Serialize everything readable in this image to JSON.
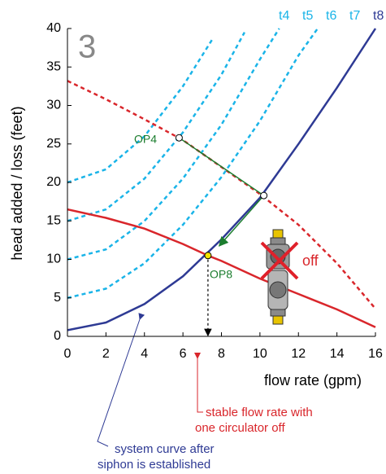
{
  "chart_data": {
    "type": "line",
    "xlabel": "flow rate (gpm)",
    "ylabel": "head added / loss (feet)",
    "xlim": [
      0,
      16
    ],
    "ylim": [
      0,
      40
    ],
    "xticks": [
      0,
      2,
      4,
      6,
      8,
      10,
      12,
      14,
      16
    ],
    "yticks": [
      0,
      5,
      10,
      15,
      20,
      25,
      30,
      35,
      40
    ],
    "series": [
      {
        "name": "t4",
        "color": "#1ab4e8",
        "dashed": true,
        "x": [
          0,
          2,
          4,
          6,
          7.5
        ],
        "values": [
          20,
          21.7,
          26,
          32.5,
          38.5
        ]
      },
      {
        "name": "t5",
        "color": "#1ab4e8",
        "dashed": true,
        "x": [
          0,
          2,
          4,
          6,
          8,
          9.2
        ],
        "values": [
          15,
          16.5,
          20.5,
          26.5,
          34,
          39.5
        ]
      },
      {
        "name": "t6",
        "color": "#1ab4e8",
        "dashed": true,
        "x": [
          0,
          2,
          4,
          6,
          8,
          10,
          11
        ],
        "values": [
          10,
          11.3,
          15,
          20.5,
          27.5,
          36,
          40
        ]
      },
      {
        "name": "t7",
        "color": "#1ab4e8",
        "dashed": true,
        "x": [
          0,
          2,
          4,
          6,
          8,
          10,
          12,
          13
        ],
        "values": [
          5,
          6.2,
          9.5,
          14.5,
          20.7,
          28,
          36.5,
          40
        ]
      },
      {
        "name": "t8",
        "color": "#2e3a94",
        "dashed": false,
        "x": [
          0,
          2,
          4,
          6,
          8,
          10,
          12,
          14,
          16
        ],
        "values": [
          0.8,
          1.8,
          4.2,
          7.8,
          12.6,
          18,
          25,
          32.3,
          40
        ]
      },
      {
        "color": "#d9262b",
        "dashed": true,
        "x": [
          0,
          2,
          4,
          6,
          8,
          10,
          12,
          14,
          16
        ],
        "values": [
          33.2,
          30.8,
          28.2,
          25.5,
          22,
          18.5,
          14.5,
          9.5,
          3.6
        ]
      },
      {
        "color": "#d9262b",
        "dashed": false,
        "x": [
          0,
          2,
          4,
          6,
          7.3,
          8,
          10,
          12,
          14,
          16
        ],
        "values": [
          16.5,
          15.4,
          14,
          12,
          10.5,
          9.8,
          7.5,
          5.5,
          3.5,
          1.2
        ]
      }
    ],
    "points": [
      {
        "x": 5.8,
        "y": 25.8,
        "color": "#ffffff"
      },
      {
        "x": 10.2,
        "y": 18.3,
        "color": "#ffffff"
      },
      {
        "x": 7.3,
        "y": 10.5,
        "color": "#f5e400"
      }
    ],
    "annotations": {
      "panel": "3",
      "op4": "OP4",
      "op8": "OP8",
      "off": "off",
      "flow_note": [
        "stable flow rate with",
        "one circulator off"
      ],
      "system_note": [
        "system curve after",
        "siphon is established"
      ]
    }
  }
}
